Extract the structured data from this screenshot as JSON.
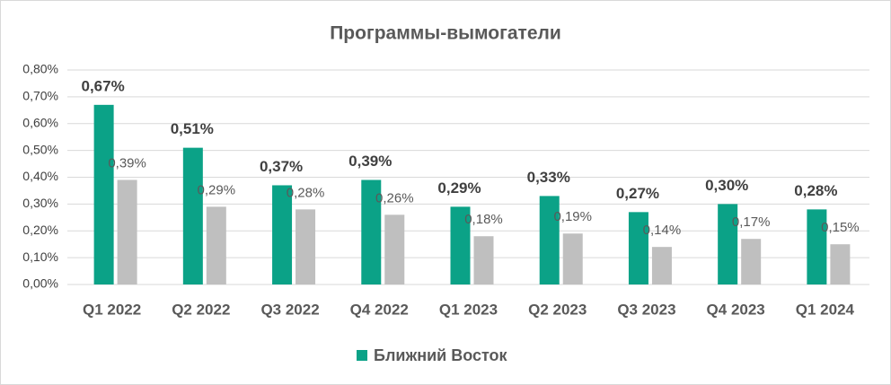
{
  "chart_data": {
    "type": "bar",
    "title": "Программы-вымогатели",
    "categories": [
      "Q1 2022",
      "Q2 2022",
      "Q3 2022",
      "Q4 2022",
      "Q1 2023",
      "Q2 2023",
      "Q3 2023",
      "Q4 2023",
      "Q1 2024"
    ],
    "series": [
      {
        "name": "Ближний Восток",
        "color": "#0ba287",
        "values": [
          0.67,
          0.51,
          0.37,
          0.39,
          0.29,
          0.33,
          0.27,
          0.3,
          0.28
        ],
        "value_labels": [
          "0,67%",
          "0,51%",
          "0,37%",
          "0,39%",
          "0,29%",
          "0,33%",
          "0,27%",
          "0,30%",
          "0,28%"
        ]
      },
      {
        "color": "#bfbfbf",
        "values": [
          0.39,
          0.29,
          0.28,
          0.26,
          0.18,
          0.19,
          0.14,
          0.17,
          0.15
        ],
        "value_labels": [
          "0,39%",
          "0,29%",
          "0,28%",
          "0,26%",
          "0,18%",
          "0,19%",
          "0,14%",
          "0,17%",
          "0,15%"
        ]
      }
    ],
    "ylim": [
      0,
      0.8
    ],
    "yticks": [
      {
        "value": 0,
        "label": "0,00%"
      },
      {
        "value": 0.1,
        "label": "0,10%"
      },
      {
        "value": 0.2,
        "label": "0,20%"
      },
      {
        "value": 0.3,
        "label": "0,30%"
      },
      {
        "value": 0.4,
        "label": "0,40%"
      },
      {
        "value": 0.5,
        "label": "0,50%"
      },
      {
        "value": 0.6,
        "label": "0,60%"
      },
      {
        "value": 0.7,
        "label": "0,70%"
      },
      {
        "value": 0.8,
        "label": "0,80%"
      }
    ],
    "grid": true,
    "legend": "bottom"
  }
}
